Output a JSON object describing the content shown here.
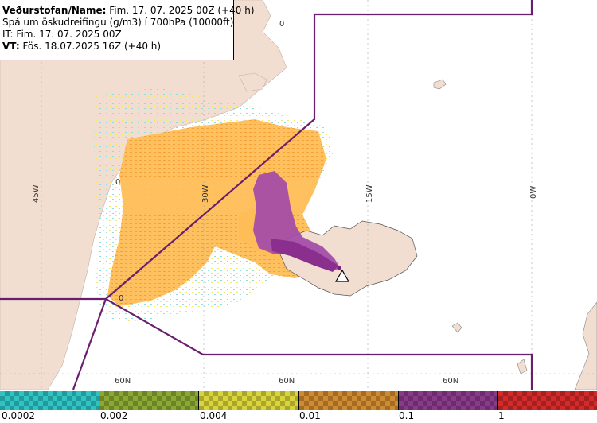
{
  "info": {
    "line1_bold": "Veðurstofan/Name:",
    "line1_rest": " Fim. 17. 07. 2025 00Z (+40 h)",
    "line2": "Spá um öskudreifingu (g/m3) í 700hPa (10000ft)",
    "line3": "IT: Fim. 17. 07. 2025 00Z",
    "line4_bold": "VT:",
    "line4_rest": " Fös. 18.07.2025 16Z (+40 h)"
  },
  "grid_labels": {
    "lon": [
      "45W",
      "30W",
      "15W",
      "0W"
    ],
    "lat": [
      "60N",
      "60N",
      "60N"
    ]
  },
  "contour_labels": [
    "0",
    "0",
    "0"
  ],
  "legend": {
    "labels": [
      "0.0002",
      "0.002",
      "0.004",
      "0.01",
      "0.1",
      "1"
    ],
    "colors": [
      "#2ec4c4",
      "#8aa832",
      "#d8d43a",
      "#d08a30",
      "#8a3a8a",
      "#d42a2a"
    ]
  },
  "colors": {
    "land": "#f2ded0",
    "sea": "#ffffff",
    "ash_light": "#ffb44a",
    "ash_mid": "#f5a030",
    "ash_heavy": "#a24aa8",
    "boundary": "#6a1f6e"
  }
}
